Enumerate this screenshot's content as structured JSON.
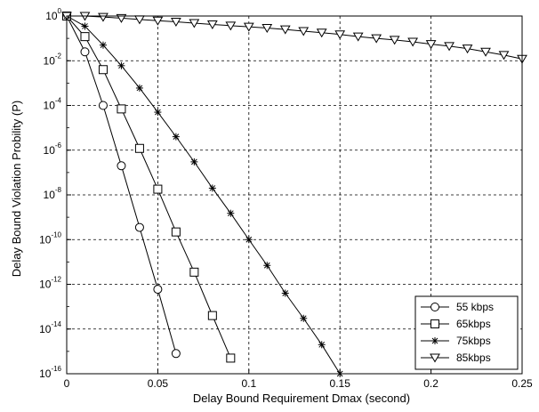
{
  "chart_data": {
    "type": "line",
    "title": "",
    "xlabel": "Delay Bound Requirement Dmax (second)",
    "ylabel": "Delay Bound Violation Probility (P)",
    "xlim": [
      0,
      0.25
    ],
    "ylim": [
      1e-16,
      1
    ],
    "yscale": "log",
    "grid": true,
    "legend_position": "bottom-right",
    "x_ticks": [
      "0",
      "0.05",
      "0.1",
      "0.15",
      "0.2",
      "0.25"
    ],
    "x_tick_values": [
      0,
      0.05,
      0.1,
      0.15,
      0.2,
      0.25
    ],
    "y_tick_exponents": [
      0,
      -2,
      -4,
      -6,
      -8,
      -10,
      -12,
      -14,
      -16
    ],
    "y_tick_base": "10",
    "series": [
      {
        "name": "55 kbps",
        "marker": "circle",
        "x": [
          0,
          0.01,
          0.02,
          0.03,
          0.04,
          0.05,
          0.06
        ],
        "y": [
          1,
          0.025,
          0.0001,
          2e-07,
          3.5e-10,
          6e-13,
          8e-16
        ]
      },
      {
        "name": "65kbps",
        "marker": "square",
        "x": [
          0,
          0.01,
          0.02,
          0.03,
          0.04,
          0.05,
          0.06,
          0.07,
          0.08,
          0.09
        ],
        "y": [
          1,
          0.12,
          0.004,
          7e-05,
          1.2e-06,
          1.8e-08,
          2.2e-10,
          3.5e-12,
          4e-14,
          5e-16
        ]
      },
      {
        "name": "75kbps",
        "marker": "star",
        "x": [
          0,
          0.01,
          0.02,
          0.03,
          0.04,
          0.05,
          0.06,
          0.07,
          0.08,
          0.09,
          0.1,
          0.11,
          0.12,
          0.13,
          0.14,
          0.15
        ],
        "y": [
          1,
          0.35,
          0.05,
          0.006,
          0.0006,
          5e-05,
          4e-06,
          3e-07,
          2e-08,
          1.5e-09,
          1e-10,
          7e-12,
          4e-13,
          3e-14,
          2e-15,
          1e-16
        ]
      },
      {
        "name": "85kbps",
        "marker": "triangle-down",
        "x": [
          0,
          0.01,
          0.02,
          0.03,
          0.04,
          0.05,
          0.06,
          0.07,
          0.08,
          0.09,
          0.1,
          0.11,
          0.12,
          0.13,
          0.14,
          0.15,
          0.16,
          0.17,
          0.18,
          0.19,
          0.2,
          0.21,
          0.22,
          0.23,
          0.24,
          0.25
        ],
        "y": [
          1,
          1,
          0.9,
          0.8,
          0.7,
          0.62,
          0.55,
          0.48,
          0.42,
          0.37,
          0.33,
          0.29,
          0.25,
          0.21,
          0.18,
          0.15,
          0.12,
          0.1,
          0.085,
          0.07,
          0.055,
          0.045,
          0.035,
          0.025,
          0.018,
          0.012
        ]
      }
    ]
  }
}
